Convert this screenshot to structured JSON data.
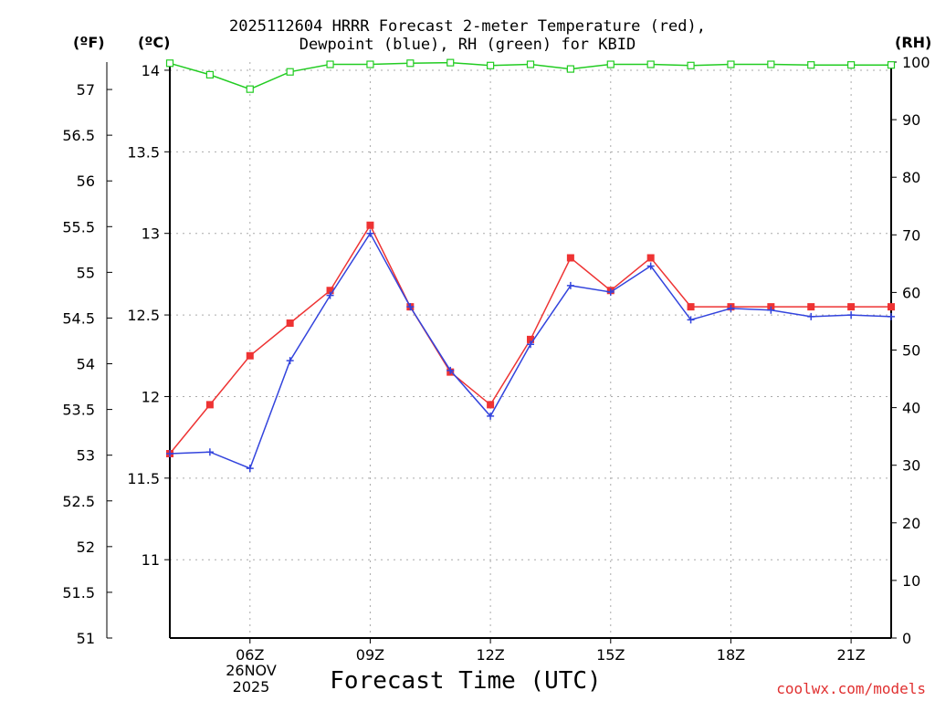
{
  "title_line1": "2025112604 HRRR Forecast 2-meter Temperature (red),",
  "title_line2": "Dewpoint (blue), RH (green) for KBID",
  "units": {
    "fahrenheit": "(ºF)",
    "celsius": "(ºC)",
    "rh": "(RH)"
  },
  "date_label": {
    "day": "26NOV",
    "year": "2025"
  },
  "credit": "coolwx.com/models",
  "colors": {
    "temperature": "#ee3333",
    "dewpoint": "#3344dd",
    "rh": "#22cc22",
    "grid": "#aaaaaa"
  },
  "chart_data": {
    "type": "line",
    "title": "2025112604 HRRR Forecast 2-meter Temperature (red), Dewpoint (blue), RH (green) for KBID",
    "xlabel": "Forecast Time (UTC)",
    "x_hours": [
      4,
      5,
      6,
      7,
      8,
      9,
      10,
      11,
      12,
      13,
      14,
      15,
      16,
      17,
      18,
      19,
      20,
      21,
      22
    ],
    "xlim": [
      4,
      22
    ],
    "x_ticks": [
      {
        "hour": 6,
        "label": "06Z"
      },
      {
        "hour": 9,
        "label": "09Z"
      },
      {
        "hour": 12,
        "label": "12Z"
      },
      {
        "hour": 15,
        "label": "15Z"
      },
      {
        "hour": 18,
        "label": "18Z"
      },
      {
        "hour": 21,
        "label": "21Z"
      }
    ],
    "celsius_axis": {
      "range": [
        10.52,
        14.05
      ],
      "ticks": [
        "11",
        "11.5",
        "12",
        "12.5",
        "13",
        "13.5",
        "14"
      ]
    },
    "fahrenheit_axis": {
      "range": [
        51,
        57.3
      ],
      "ticks": [
        "51",
        "51.5",
        "52",
        "52.5",
        "53",
        "53.5",
        "54",
        "54.5",
        "55",
        "55.5",
        "56",
        "56.5",
        "57"
      ]
    },
    "rh_axis": {
      "range": [
        0,
        100
      ],
      "ticks": [
        "0",
        "10",
        "20",
        "30",
        "40",
        "50",
        "60",
        "70",
        "80",
        "90",
        "100"
      ]
    },
    "series": [
      {
        "name": "Temperature",
        "unit": "C",
        "axis": "celsius",
        "marker": "filled-square",
        "values": [
          11.65,
          11.95,
          12.25,
          12.45,
          12.65,
          13.05,
          12.55,
          12.15,
          11.95,
          12.35,
          12.85,
          12.65,
          12.85,
          12.55,
          12.55,
          12.55,
          12.55,
          12.55,
          12.55
        ]
      },
      {
        "name": "Dewpoint",
        "unit": "C",
        "axis": "celsius",
        "marker": "plus",
        "values": [
          11.65,
          11.66,
          11.56,
          12.22,
          12.62,
          13.0,
          12.55,
          12.16,
          11.88,
          12.32,
          12.68,
          12.64,
          12.8,
          12.47,
          12.54,
          12.53,
          12.49,
          12.5,
          12.49
        ]
      },
      {
        "name": "RH",
        "unit": "%",
        "axis": "rh",
        "marker": "open-square",
        "values": [
          99.8,
          97.8,
          95.3,
          98.3,
          99.6,
          99.6,
          99.8,
          99.9,
          99.4,
          99.6,
          98.8,
          99.6,
          99.6,
          99.4,
          99.6,
          99.6,
          99.5,
          99.5,
          99.5
        ]
      }
    ],
    "grid": true
  }
}
